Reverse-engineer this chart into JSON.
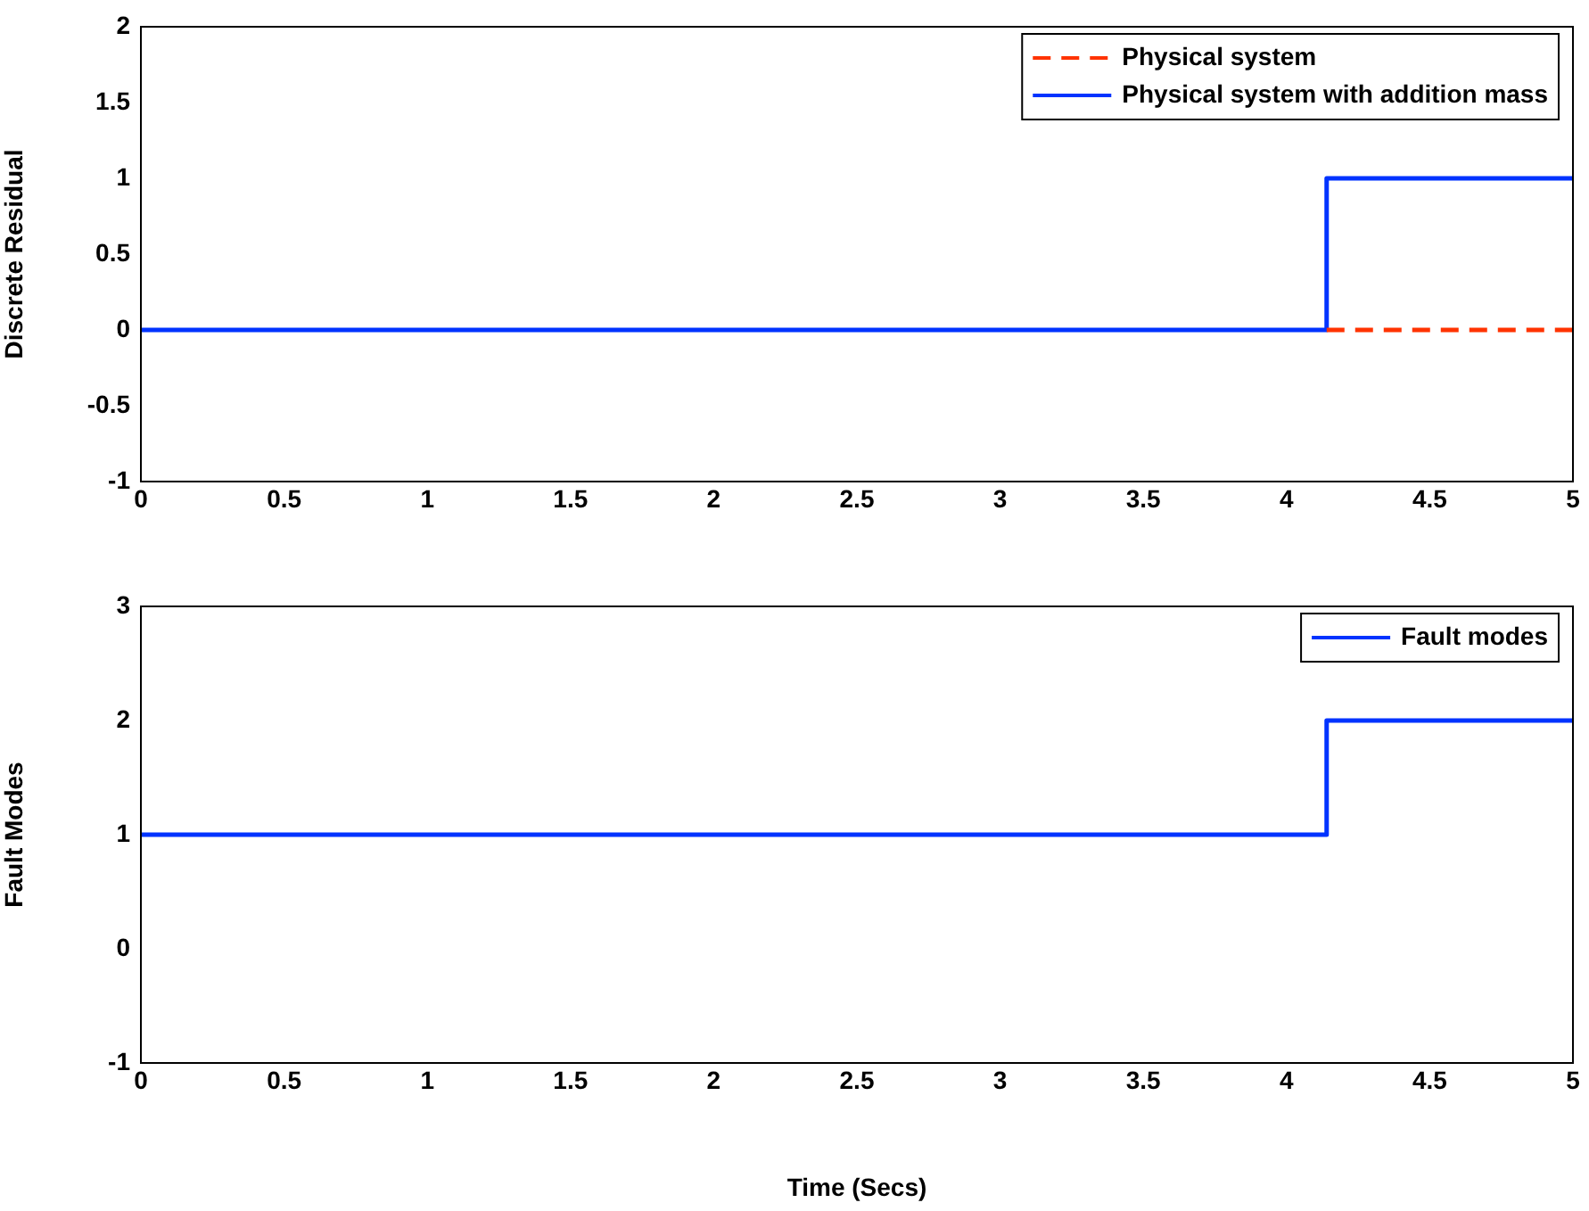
{
  "chart_data": [
    {
      "type": "step",
      "ylabel": "Discrete Residual",
      "xlim": [
        0,
        5
      ],
      "xticks": [
        0,
        0.5,
        1,
        1.5,
        2,
        2.5,
        3,
        3.5,
        4,
        4.5,
        5
      ],
      "ylim": [
        -1,
        2
      ],
      "yticks": [
        -1,
        -0.5,
        0,
        0.5,
        1,
        1.5,
        2
      ],
      "legend": "top right",
      "grid": false,
      "series": [
        {
          "name": "Physical system",
          "color": "#ff3300",
          "line_style": "dashed",
          "x": [
            4.14,
            5
          ],
          "values": [
            0,
            0
          ]
        },
        {
          "name": "Physical system with addition mass",
          "color": "#0033ff",
          "line_style": "solid",
          "x": [
            0,
            4.14,
            5
          ],
          "values": [
            0,
            1,
            1
          ]
        }
      ]
    },
    {
      "type": "step",
      "xlabel": "Time (Secs)",
      "ylabel": "Fault Modes",
      "xlim": [
        0,
        5
      ],
      "xticks": [
        0,
        0.5,
        1,
        1.5,
        2,
        2.5,
        3,
        3.5,
        4,
        4.5,
        5
      ],
      "ylim": [
        -1,
        3
      ],
      "yticks": [
        -1,
        0,
        1,
        2,
        3
      ],
      "legend": "top right",
      "grid": false,
      "series": [
        {
          "name": "Fault modes",
          "color": "#0033ff",
          "line_style": "solid",
          "x": [
            0,
            4.14,
            5
          ],
          "values": [
            1,
            2,
            2
          ]
        }
      ]
    }
  ]
}
